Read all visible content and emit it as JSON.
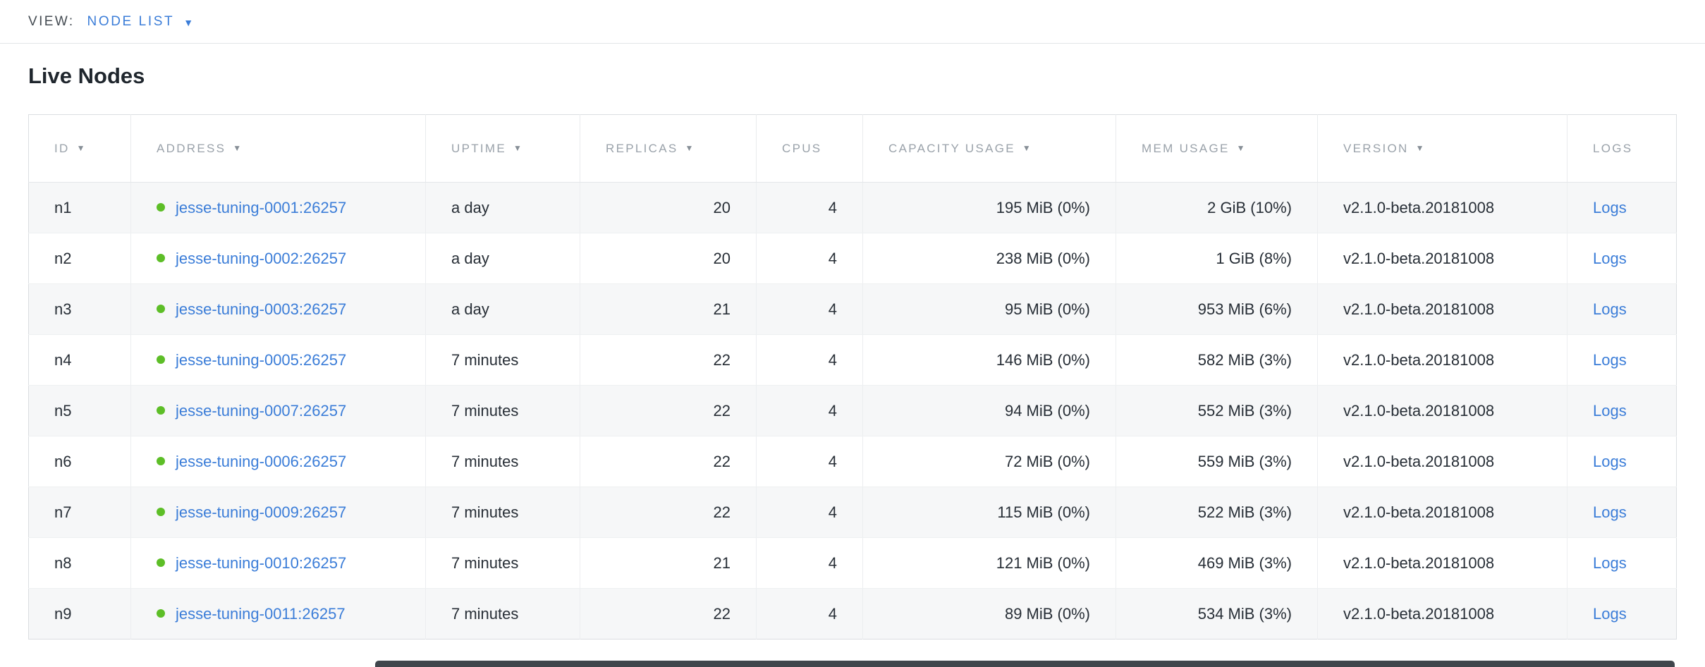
{
  "colors": {
    "link": "#3b7dd8",
    "live_dot": "#5dbe27",
    "header_text": "#9aa2aa"
  },
  "icons": {
    "caret-down": "▼",
    "sort-desc": "▼",
    "live-dot": "●"
  },
  "view_bar": {
    "label": "VIEW:",
    "selected": "NODE LIST"
  },
  "page": {
    "title": "Live Nodes"
  },
  "table": {
    "columns": [
      {
        "key": "id",
        "label": "ID",
        "sortable": true,
        "align": "left"
      },
      {
        "key": "address",
        "label": "ADDRESS",
        "sortable": true,
        "align": "left"
      },
      {
        "key": "uptime",
        "label": "UPTIME",
        "sortable": true,
        "align": "left"
      },
      {
        "key": "replicas",
        "label": "REPLICAS",
        "sortable": true,
        "align": "right"
      },
      {
        "key": "cpus",
        "label": "CPUS",
        "sortable": false,
        "align": "right"
      },
      {
        "key": "capacity",
        "label": "CAPACITY USAGE",
        "sortable": true,
        "align": "right"
      },
      {
        "key": "mem",
        "label": "MEM USAGE",
        "sortable": true,
        "align": "right"
      },
      {
        "key": "version",
        "label": "VERSION",
        "sortable": true,
        "align": "left"
      },
      {
        "key": "logs",
        "label": "LOGS",
        "sortable": false,
        "align": "left"
      }
    ],
    "rows": [
      {
        "id": "n1",
        "address": "jesse-tuning-0001:26257",
        "uptime": "a day",
        "replicas": "20",
        "cpus": "4",
        "capacity": "195 MiB (0%)",
        "mem": "2 GiB (10%)",
        "version": "v2.1.0-beta.20181008",
        "logs": "Logs"
      },
      {
        "id": "n2",
        "address": "jesse-tuning-0002:26257",
        "uptime": "a day",
        "replicas": "20",
        "cpus": "4",
        "capacity": "238 MiB (0%)",
        "mem": "1 GiB (8%)",
        "version": "v2.1.0-beta.20181008",
        "logs": "Logs"
      },
      {
        "id": "n3",
        "address": "jesse-tuning-0003:26257",
        "uptime": "a day",
        "replicas": "21",
        "cpus": "4",
        "capacity": "95 MiB (0%)",
        "mem": "953 MiB (6%)",
        "version": "v2.1.0-beta.20181008",
        "logs": "Logs"
      },
      {
        "id": "n4",
        "address": "jesse-tuning-0005:26257",
        "uptime": "7 minutes",
        "replicas": "22",
        "cpus": "4",
        "capacity": "146 MiB (0%)",
        "mem": "582 MiB (3%)",
        "version": "v2.1.0-beta.20181008",
        "logs": "Logs"
      },
      {
        "id": "n5",
        "address": "jesse-tuning-0007:26257",
        "uptime": "7 minutes",
        "replicas": "22",
        "cpus": "4",
        "capacity": "94 MiB (0%)",
        "mem": "552 MiB (3%)",
        "version": "v2.1.0-beta.20181008",
        "logs": "Logs"
      },
      {
        "id": "n6",
        "address": "jesse-tuning-0006:26257",
        "uptime": "7 minutes",
        "replicas": "22",
        "cpus": "4",
        "capacity": "72 MiB (0%)",
        "mem": "559 MiB (3%)",
        "version": "v2.1.0-beta.20181008",
        "logs": "Logs"
      },
      {
        "id": "n7",
        "address": "jesse-tuning-0009:26257",
        "uptime": "7 minutes",
        "replicas": "22",
        "cpus": "4",
        "capacity": "115 MiB (0%)",
        "mem": "522 MiB (3%)",
        "version": "v2.1.0-beta.20181008",
        "logs": "Logs"
      },
      {
        "id": "n8",
        "address": "jesse-tuning-0010:26257",
        "uptime": "7 minutes",
        "replicas": "21",
        "cpus": "4",
        "capacity": "121 MiB (0%)",
        "mem": "469 MiB (3%)",
        "version": "v2.1.0-beta.20181008",
        "logs": "Logs"
      },
      {
        "id": "n9",
        "address": "jesse-tuning-0011:26257",
        "uptime": "7 minutes",
        "replicas": "22",
        "cpus": "4",
        "capacity": "89 MiB (0%)",
        "mem": "534 MiB (3%)",
        "version": "v2.1.0-beta.20181008",
        "logs": "Logs"
      }
    ]
  }
}
